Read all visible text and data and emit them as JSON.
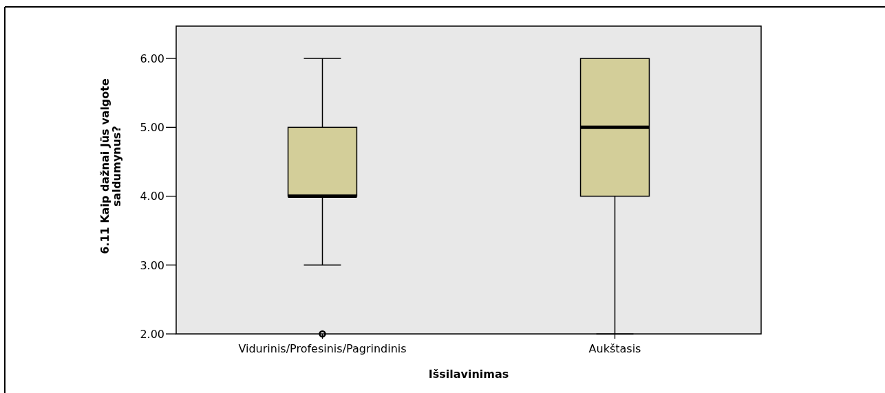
{
  "chart_data": {
    "type": "box",
    "ylabel": "6.11 Kaip dažnai Jūs valgote\nsaldumynus?",
    "xlabel": "Išsilavinimas",
    "categories": [
      "Vidurinis/Profesinis/Pagrindinis",
      "Aukštasis"
    ],
    "color": "#d3ce99",
    "boxes": [
      {
        "low": 3,
        "q1": 4,
        "median": 4,
        "q3": 5,
        "high": 6,
        "outliers": [
          2
        ]
      },
      {
        "low": 2,
        "q1": 4,
        "median": 5,
        "q3": 6,
        "high": 6
      }
    ],
    "ylim": [
      2,
      6.47
    ],
    "yticks": [
      {
        "value": 2,
        "label": "2.00"
      },
      {
        "value": 3,
        "label": "3.00"
      },
      {
        "value": 4,
        "label": "4.00"
      },
      {
        "value": 5,
        "label": "5.00"
      },
      {
        "value": 6,
        "label": "6.00"
      }
    ],
    "grid": false
  }
}
